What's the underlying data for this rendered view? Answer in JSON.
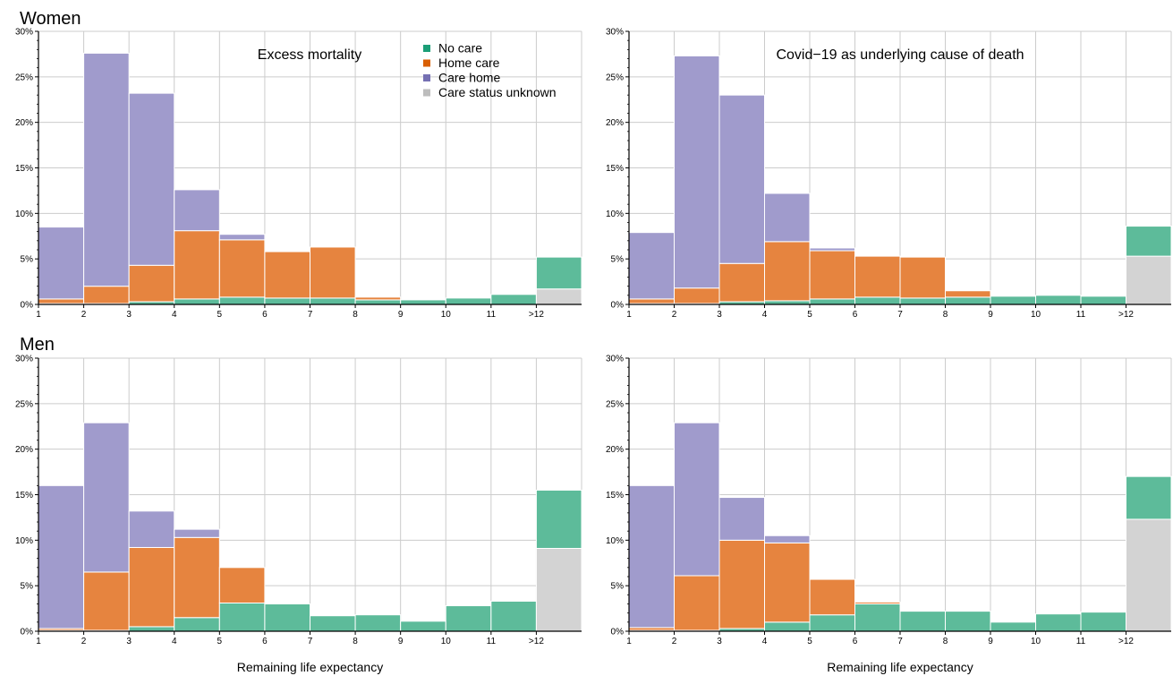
{
  "figure": {
    "row_labels": [
      "Women",
      "Men"
    ],
    "xlabel": "Remaining life expectancy",
    "legend": {
      "items": [
        {
          "label": "No care",
          "color": "#5dbb9a"
        },
        {
          "label": "Home care",
          "color": "#e6843f"
        },
        {
          "label": "Care home",
          "color": "#a09bcc"
        },
        {
          "label": "Care status unknown",
          "color": "#d3d3d3"
        }
      ],
      "marker_colors": [
        "#1b9e77",
        "#d95f02",
        "#7570b3",
        "#bdbdbd"
      ]
    },
    "colors": {
      "grid": "#cccccc",
      "bar_edge": "#ffffff",
      "axis": "#000000"
    }
  },
  "chart_data": [
    {
      "type": "bar",
      "stacked": true,
      "row": "Women",
      "title": "Excess mortality",
      "x_ticks": [
        "1",
        "2",
        "3",
        "4",
        "5",
        "6",
        "7",
        "8",
        "9",
        "10",
        "11",
        ">12"
      ],
      "categories": [
        "1-2",
        "2-3",
        "3-4",
        "4-5",
        "5-6",
        "6-7",
        "7-8",
        "8-9",
        "9-10",
        "10-11",
        "11-12",
        ">12"
      ],
      "ylim": [
        0,
        30
      ],
      "y_ticks": [
        "0%",
        "5%",
        "10%",
        "15%",
        "20%",
        "25%",
        "30%"
      ],
      "grid": true,
      "legend": "top-right",
      "series": [
        {
          "name": "Care status unknown",
          "values": [
            0,
            0,
            0,
            0,
            0,
            0,
            0,
            0,
            0,
            0,
            0,
            1.7
          ]
        },
        {
          "name": "No care",
          "values": [
            0.1,
            0.1,
            0.3,
            0.6,
            0.8,
            0.7,
            0.7,
            0.5,
            0.5,
            0.7,
            1.1,
            3.5
          ]
        },
        {
          "name": "Home care",
          "values": [
            0.5,
            1.9,
            4.0,
            7.5,
            6.3,
            5.1,
            5.6,
            0.3,
            0,
            0,
            0,
            0
          ]
        },
        {
          "name": "Care home",
          "values": [
            7.9,
            25.6,
            18.9,
            4.5,
            0.6,
            0,
            0,
            0,
            0,
            0,
            0,
            0
          ]
        }
      ]
    },
    {
      "type": "bar",
      "stacked": true,
      "row": "Women",
      "title": "Covid−19 as underlying cause of death",
      "x_ticks": [
        "1",
        "2",
        "3",
        "4",
        "5",
        "6",
        "7",
        "8",
        "9",
        "10",
        "11",
        ">12"
      ],
      "categories": [
        "1-2",
        "2-3",
        "3-4",
        "4-5",
        "5-6",
        "6-7",
        "7-8",
        "8-9",
        "9-10",
        "10-11",
        "11-12",
        ">12"
      ],
      "ylim": [
        0,
        30
      ],
      "y_ticks": [
        "0%",
        "5%",
        "10%",
        "15%",
        "20%",
        "25%",
        "30%"
      ],
      "grid": true,
      "series": [
        {
          "name": "Care status unknown",
          "values": [
            0,
            0,
            0,
            0,
            0,
            0,
            0,
            0,
            0,
            0,
            0,
            5.3
          ]
        },
        {
          "name": "No care",
          "values": [
            0.1,
            0.1,
            0.3,
            0.4,
            0.6,
            0.8,
            0.7,
            0.8,
            0.9,
            1.0,
            0.9,
            3.3
          ]
        },
        {
          "name": "Home care",
          "values": [
            0.5,
            1.7,
            4.2,
            6.5,
            5.3,
            4.5,
            4.5,
            0.7,
            0,
            0,
            0,
            0
          ]
        },
        {
          "name": "Care home",
          "values": [
            7.3,
            25.5,
            18.5,
            5.3,
            0.3,
            0,
            0,
            0,
            0,
            0,
            0,
            0
          ]
        }
      ]
    },
    {
      "type": "bar",
      "stacked": true,
      "row": "Men",
      "title": "",
      "xlabel": "Remaining life expectancy",
      "x_ticks": [
        "1",
        "2",
        "3",
        "4",
        "5",
        "6",
        "7",
        "8",
        "9",
        "10",
        "11",
        ">12"
      ],
      "categories": [
        "1-2",
        "2-3",
        "3-4",
        "4-5",
        "5-6",
        "6-7",
        "7-8",
        "8-9",
        "9-10",
        "10-11",
        "11-12",
        ">12"
      ],
      "ylim": [
        0,
        30
      ],
      "y_ticks": [
        "0%",
        "5%",
        "10%",
        "15%",
        "20%",
        "25%",
        "30%"
      ],
      "grid": true,
      "series": [
        {
          "name": "Care status unknown",
          "values": [
            0,
            0,
            0,
            0,
            0,
            0,
            0,
            0,
            0,
            0,
            0,
            9.1
          ]
        },
        {
          "name": "No care",
          "values": [
            0.1,
            0.1,
            0.5,
            1.5,
            3.1,
            3.0,
            1.7,
            1.8,
            1.1,
            2.8,
            3.3,
            6.4
          ]
        },
        {
          "name": "Home care",
          "values": [
            0.2,
            6.4,
            8.7,
            8.8,
            3.9,
            0,
            0,
            0,
            0,
            0,
            0,
            0
          ]
        },
        {
          "name": "Care home",
          "values": [
            15.7,
            16.4,
            4.0,
            0.9,
            0,
            0,
            0,
            0,
            0,
            0,
            0,
            0
          ]
        }
      ]
    },
    {
      "type": "bar",
      "stacked": true,
      "row": "Men",
      "title": "",
      "xlabel": "Remaining life expectancy",
      "x_ticks": [
        "1",
        "2",
        "3",
        "4",
        "5",
        "6",
        "7",
        "8",
        "9",
        "10",
        "11",
        ">12"
      ],
      "categories": [
        "1-2",
        "2-3",
        "3-4",
        "4-5",
        "5-6",
        "6-7",
        "7-8",
        "8-9",
        "9-10",
        "10-11",
        "11-12",
        ">12"
      ],
      "ylim": [
        0,
        30
      ],
      "y_ticks": [
        "0%",
        "5%",
        "10%",
        "15%",
        "20%",
        "25%",
        "30%"
      ],
      "grid": true,
      "series": [
        {
          "name": "Care status unknown",
          "values": [
            0,
            0,
            0,
            0,
            0,
            0,
            0,
            0,
            0,
            0,
            0,
            12.3
          ]
        },
        {
          "name": "No care",
          "values": [
            0.1,
            0.1,
            0.3,
            1.0,
            1.8,
            3.0,
            2.2,
            2.2,
            1.0,
            1.9,
            2.1,
            4.7
          ]
        },
        {
          "name": "Home care",
          "values": [
            0.3,
            6.0,
            9.7,
            8.7,
            3.9,
            0.2,
            0,
            0,
            0,
            0,
            0,
            0
          ]
        },
        {
          "name": "Care home",
          "values": [
            15.6,
            16.8,
            4.7,
            0.8,
            0,
            0,
            0,
            0,
            0,
            0,
            0,
            0
          ]
        }
      ]
    }
  ]
}
